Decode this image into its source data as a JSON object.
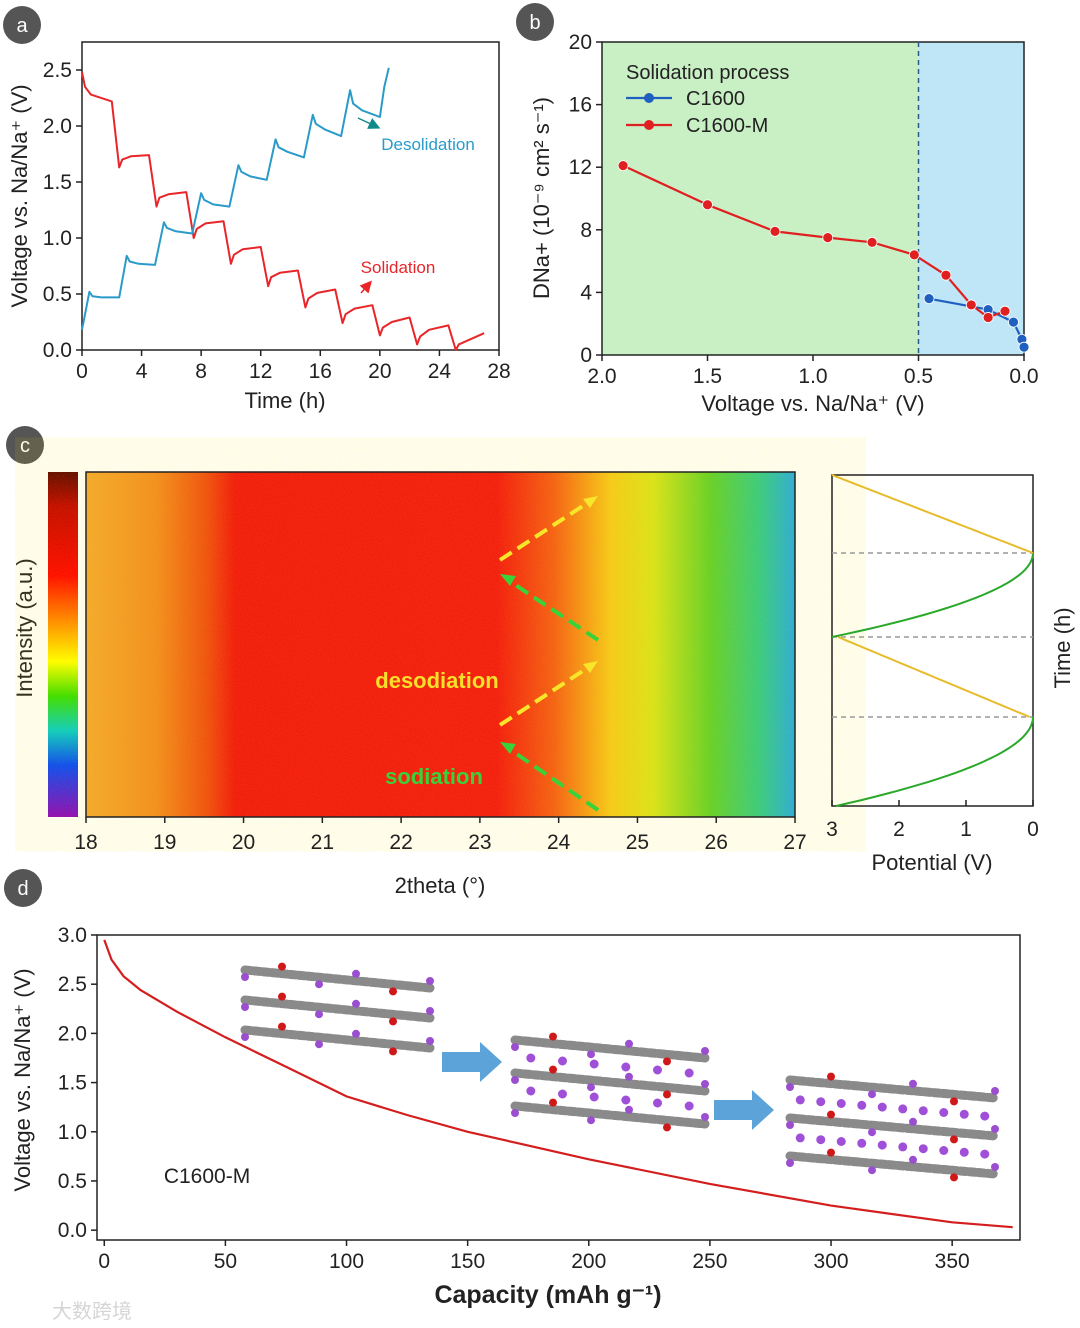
{
  "panels": {
    "a": "a",
    "b": "b",
    "c": "c",
    "d": "d"
  },
  "watermark": "大数跨境",
  "colors": {
    "red": "#e8262a",
    "blue": "#2a9bc9",
    "yellow": "#f2d21b",
    "green": "#2bc02b",
    "badge": "#555555"
  },
  "chart_data": [
    {
      "id": "a",
      "type": "line",
      "xlabel": "Time (h)",
      "ylabel": "Voltage vs. Na/Na⁺ (V)",
      "xlim": [
        0,
        28
      ],
      "ylim": [
        0,
        2.75
      ],
      "xticks": [
        0,
        4,
        8,
        12,
        16,
        20,
        24,
        28
      ],
      "yticks": [
        0.0,
        0.5,
        1.0,
        1.5,
        2.0,
        2.5
      ],
      "ytick_labels": [
        "0.0",
        "0.5",
        "1.0",
        "1.5",
        "2.0",
        "2.5"
      ],
      "annotations": [
        "Desolidation",
        "Solidation"
      ],
      "series": [
        {
          "name": "Solidation",
          "color": "#e8262a",
          "points": [
            [
              0,
              2.48
            ],
            [
              0.2,
              2.35
            ],
            [
              0.6,
              2.28
            ],
            [
              2,
              2.22
            ],
            [
              2.5,
              1.63
            ],
            [
              2.7,
              1.7
            ],
            [
              3.3,
              1.73
            ],
            [
              4.5,
              1.74
            ],
            [
              5,
              1.28
            ],
            [
              5.2,
              1.36
            ],
            [
              5.8,
              1.39
            ],
            [
              7,
              1.41
            ],
            [
              7.5,
              1.0
            ],
            [
              7.7,
              1.08
            ],
            [
              8.3,
              1.13
            ],
            [
              9.5,
              1.15
            ],
            [
              10,
              0.77
            ],
            [
              10.2,
              0.85
            ],
            [
              10.8,
              0.9
            ],
            [
              12,
              0.92
            ],
            [
              12.5,
              0.57
            ],
            [
              12.7,
              0.65
            ],
            [
              13.3,
              0.69
            ],
            [
              14.5,
              0.71
            ],
            [
              15,
              0.38
            ],
            [
              15.2,
              0.46
            ],
            [
              15.8,
              0.51
            ],
            [
              17,
              0.54
            ],
            [
              17.5,
              0.24
            ],
            [
              17.7,
              0.32
            ],
            [
              18.3,
              0.37
            ],
            [
              19.5,
              0.4
            ],
            [
              20,
              0.13
            ],
            [
              20.2,
              0.2
            ],
            [
              20.8,
              0.25
            ],
            [
              22,
              0.29
            ],
            [
              22.5,
              0.05
            ],
            [
              22.7,
              0.12
            ],
            [
              23.3,
              0.18
            ],
            [
              24.6,
              0.22
            ],
            [
              25.1,
              0.0
            ],
            [
              25.3,
              0.05
            ],
            [
              27,
              0.15
            ]
          ]
        },
        {
          "name": "Desolidation",
          "color": "#2a9bc9",
          "points": [
            [
              0,
              0.18
            ],
            [
              0.5,
              0.52
            ],
            [
              0.7,
              0.48
            ],
            [
              1.3,
              0.47
            ],
            [
              2.5,
              0.47
            ],
            [
              3,
              0.84
            ],
            [
              3.2,
              0.79
            ],
            [
              3.8,
              0.77
            ],
            [
              4.9,
              0.76
            ],
            [
              5.5,
              1.14
            ],
            [
              5.7,
              1.09
            ],
            [
              6.3,
              1.06
            ],
            [
              7.4,
              1.04
            ],
            [
              8,
              1.4
            ],
            [
              8.2,
              1.34
            ],
            [
              8.8,
              1.3
            ],
            [
              9.9,
              1.28
            ],
            [
              10.5,
              1.65
            ],
            [
              10.7,
              1.59
            ],
            [
              11.3,
              1.55
            ],
            [
              12.4,
              1.52
            ],
            [
              13,
              1.88
            ],
            [
              13.2,
              1.81
            ],
            [
              13.8,
              1.77
            ],
            [
              14.9,
              1.72
            ],
            [
              15.5,
              2.1
            ],
            [
              15.7,
              2.02
            ],
            [
              16.3,
              1.97
            ],
            [
              17.4,
              1.91
            ],
            [
              18,
              2.32
            ],
            [
              18.2,
              2.2
            ],
            [
              18.8,
              2.14
            ],
            [
              20,
              2.08
            ],
            [
              20.3,
              2.35
            ],
            [
              20.6,
              2.52
            ]
          ]
        }
      ]
    },
    {
      "id": "b",
      "type": "line",
      "xlabel": "Voltage vs. Na/Na⁺ (V)",
      "ylabel": "DNa+ (10⁻⁹ cm² s⁻¹)",
      "xlim": [
        2.0,
        0.0
      ],
      "ylim": [
        0,
        20
      ],
      "xticks": [
        2.0,
        1.5,
        1.0,
        0.5,
        0.0
      ],
      "xtick_labels": [
        "2.0",
        "1.5",
        "1.0",
        "0.5",
        "0.0"
      ],
      "yticks": [
        0,
        4,
        8,
        12,
        16,
        20
      ],
      "regions": [
        {
          "from": 2.0,
          "to": 0.5,
          "color": "#c9efc4"
        },
        {
          "from": 0.5,
          "to": 0.0,
          "color": "#bfe6f7"
        }
      ],
      "divider": 0.5,
      "legend_title": "Solidation process",
      "legend_position": "top-left",
      "series": [
        {
          "name": "C1600",
          "color": "#1f5fbf",
          "points": [
            [
              0.45,
              3.6
            ],
            [
              0.17,
              2.9
            ],
            [
              0.05,
              2.1
            ],
            [
              0.01,
              1.0
            ],
            [
              0.0,
              0.5
            ]
          ]
        },
        {
          "name": "C1600-M",
          "color": "#e02020",
          "points": [
            [
              1.9,
              12.1
            ],
            [
              1.5,
              9.6
            ],
            [
              1.18,
              7.9
            ],
            [
              0.93,
              7.5
            ],
            [
              0.72,
              7.2
            ],
            [
              0.52,
              6.4
            ],
            [
              0.37,
              5.1
            ],
            [
              0.25,
              3.2
            ],
            [
              0.17,
              2.4
            ],
            [
              0.09,
              2.8
            ]
          ]
        }
      ]
    },
    {
      "id": "c-map",
      "type": "heatmap",
      "xlabel": "2theta (°)",
      "ylabel": "Intensity (a.u.)",
      "xlim": [
        18,
        27
      ],
      "xticks": [
        18,
        19,
        20,
        21,
        22,
        23,
        24,
        25,
        26,
        27
      ],
      "annotations": [
        "desodiation",
        "sodiation"
      ]
    },
    {
      "id": "c-profile",
      "type": "line",
      "xlabel": "Potential (V)",
      "ylabel": "Time (h)",
      "xlim": [
        3,
        0
      ],
      "xticks": [
        3,
        2,
        1,
        0
      ],
      "series": [
        {
          "name": "sodiation",
          "color": "#2aa82a"
        },
        {
          "name": "desodiation",
          "color": "#e8bb2a"
        }
      ]
    },
    {
      "id": "d",
      "type": "line",
      "xlabel": "Capacity   (mAh g⁻¹)",
      "ylabel": "Voltage vs. Na/Na⁺ (V)",
      "xlim": [
        -3,
        378
      ],
      "ylim": [
        -0.1,
        3.0
      ],
      "xticks": [
        0,
        50,
        100,
        150,
        200,
        250,
        300,
        350
      ],
      "yticks": [
        0.0,
        0.5,
        1.0,
        1.5,
        2.0,
        2.5,
        3.0
      ],
      "ytick_labels": [
        "0.0",
        "0.5",
        "1.0",
        "1.5",
        "2.0",
        "2.5",
        "3.0"
      ],
      "annotations": [
        "C1600-M"
      ],
      "series": [
        {
          "name": "C1600-M",
          "color": "#d41e1e",
          "points": [
            [
              0,
              2.95
            ],
            [
              3,
              2.75
            ],
            [
              8,
              2.58
            ],
            [
              15,
              2.44
            ],
            [
              30,
              2.22
            ],
            [
              50,
              1.96
            ],
            [
              75,
              1.66
            ],
            [
              100,
              1.36
            ],
            [
              125,
              1.17
            ],
            [
              150,
              1.0
            ],
            [
              200,
              0.72
            ],
            [
              250,
              0.47
            ],
            [
              300,
              0.25
            ],
            [
              350,
              0.08
            ],
            [
              375,
              0.03
            ]
          ]
        }
      ]
    }
  ]
}
